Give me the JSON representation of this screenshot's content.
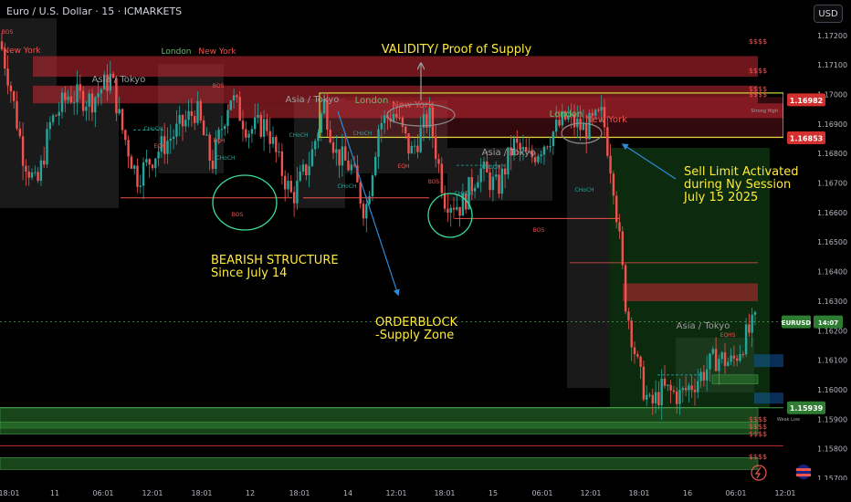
{
  "header": {
    "title": "Euro / U.S. Dollar · 15 · ICMARKETS"
  },
  "currency_button": "USD",
  "symbol_tag": "EURUSD",
  "countdown": "14:07",
  "annotations": {
    "validity": "VALIDITY/ Proof of Supply",
    "bearish": [
      "BEARISH STRUCTURE",
      "Since July 14"
    ],
    "orderblock": [
      "ORDERBLOCK",
      "-Supply Zone"
    ],
    "sell_limit": [
      "Sell Limit Activated",
      "during Ny Session",
      "July 15 2025"
    ],
    "strong_high": "Strong High",
    "weak_low": "Weak Low"
  },
  "colors": {
    "background": "#000000",
    "up_candle": "#26a69a",
    "down_candle": "#ef5350",
    "supply_zone": "#c62833",
    "demand_zone": "#2e7d32",
    "annotation_yellow": "#ffeb3b",
    "arrow_blue": "#2e8bd8",
    "circle_green": "#3ddc97",
    "price_tag_red": "#d32f2f"
  },
  "chart_data": {
    "type": "candlestick",
    "symbol": "EURUSD",
    "timeframe": "15",
    "ylim": [
      1.157,
      1.1732
    ],
    "y_ticks": [
      "1.17200",
      "1.17100",
      "1.17000",
      "1.16900",
      "1.16800",
      "1.16700",
      "1.16600",
      "1.16500",
      "1.16400",
      "1.16300",
      "1.16200",
      "1.16100",
      "1.16000",
      "1.15900",
      "1.15800",
      "1.15700"
    ],
    "x_ticks": [
      "18:01",
      "11",
      "06:01",
      "12:01",
      "18:01",
      "12",
      "18:01",
      "14",
      "12:01",
      "18:01",
      "15",
      "06:01",
      "12:01",
      "18:01",
      "16",
      "06:01",
      "12:01",
      "18:01"
    ],
    "price_labels": [
      {
        "value": "1.16982",
        "color": "#d32f2f"
      },
      {
        "value": "1.16853",
        "color": "#d32f2f"
      },
      {
        "value": "1.15939",
        "color": "#2e7d32"
      }
    ],
    "sessions": [
      {
        "label": "New York",
        "color": "#ef5350"
      },
      {
        "label": "London",
        "color": "#66bb6a"
      },
      {
        "label": "New York",
        "color": "#ef5350"
      },
      {
        "label": "Asia / Tokyo",
        "color": "#9e9e9e"
      },
      {
        "label": "Asia / Tokyo",
        "color": "#9e9e9e"
      },
      {
        "label": "London",
        "color": "#66bb6a"
      },
      {
        "label": "New York",
        "color": "#ef5350"
      },
      {
        "label": "Asia / Tokyo",
        "color": "#9e9e9e"
      },
      {
        "label": "London",
        "color": "#66bb6a"
      },
      {
        "label": "New York",
        "color": "#ef5350"
      },
      {
        "label": "Asia / Tokyo",
        "color": "#9e9e9e"
      }
    ],
    "structure_labels": [
      "BOS",
      "BOS",
      "BOS",
      "BOS",
      "BOS",
      "CHoCH",
      "CHoCH",
      "CHoCH",
      "CHoCH",
      "CHoCH",
      "CHoCH",
      "CHoCH",
      "CHoCH",
      "EQH",
      "EQH",
      "EQH",
      "EQHS"
    ],
    "liquidity_marks": [
      "$$$$",
      "$$$$",
      "$$$$",
      "$$$$",
      "$$$$",
      "$$$$",
      "$$$$",
      "$$$$"
    ],
    "supply_zones": [
      [
        1.1706,
        1.1713
      ],
      [
        1.1697,
        1.1703
      ],
      [
        1.1692,
        1.1697
      ],
      [
        1.163,
        1.1636
      ]
    ],
    "demand_zones": [
      [
        1.1587,
        1.1594
      ],
      [
        1.1585,
        1.1589
      ],
      [
        1.1573,
        1.1577
      ],
      [
        1.1602,
        1.1605
      ]
    ],
    "summary": {
      "range_high": 1.1712,
      "range_low": 1.1592,
      "last_price": 1.1623,
      "sell_limit_entry": 1.1685
    }
  }
}
